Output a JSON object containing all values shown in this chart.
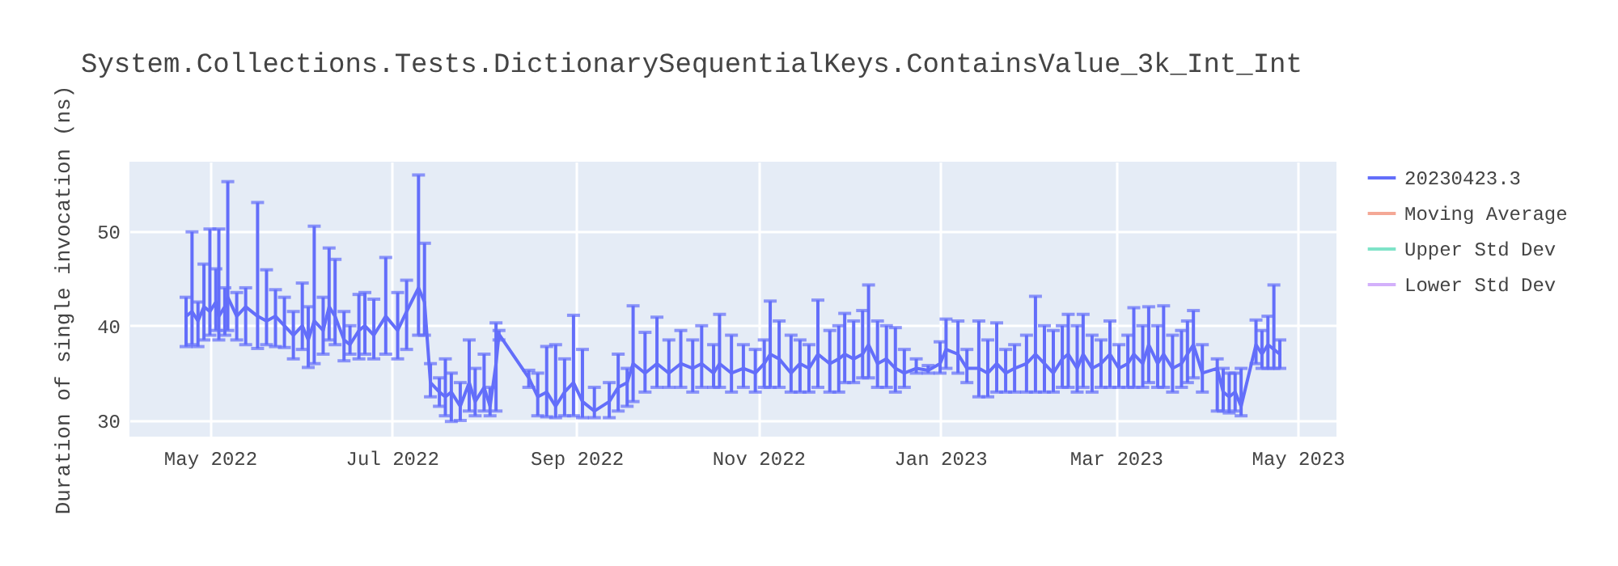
{
  "chart_data": {
    "type": "line",
    "title": "System.Collections.Tests.DictionarySequentialKeys.ContainsValue_3k_Int_Int",
    "ylabel": "Duration of single invocation (ns)",
    "xlim": [
      "2022-04-04",
      "2023-05-14"
    ],
    "xticks": [
      {
        "value": "2022-05-01",
        "label": "May 2022"
      },
      {
        "value": "2022-07-01",
        "label": "Jul 2022"
      },
      {
        "value": "2022-09-01",
        "label": "Sep 2022"
      },
      {
        "value": "2022-11-01",
        "label": "Nov 2022"
      },
      {
        "value": "2023-01-01",
        "label": "Jan 2023"
      },
      {
        "value": "2023-03-01",
        "label": "Mar 2023"
      },
      {
        "value": "2023-05-01",
        "label": "May 2023"
      }
    ],
    "ylim": [
      28.3,
      57.3
    ],
    "yticks": [
      30,
      40,
      50
    ],
    "grid": true,
    "legend": "top right",
    "marker": "none",
    "line_style": "solid",
    "series": [
      {
        "name": "20230423.3",
        "color": "#636efa",
        "x": [
          "2022-04-23",
          "2022-04-25",
          "2022-04-27",
          "2022-04-29",
          "2022-05-01",
          "2022-05-03",
          "2022-05-04",
          "2022-05-06",
          "2022-05-07",
          "2022-05-10",
          "2022-05-13",
          "2022-05-17",
          "2022-05-20",
          "2022-05-23",
          "2022-05-26",
          "2022-05-29",
          "2022-06-01",
          "2022-06-03",
          "2022-06-05",
          "2022-06-08",
          "2022-06-10",
          "2022-06-12",
          "2022-06-15",
          "2022-06-17",
          "2022-06-20",
          "2022-06-22",
          "2022-06-25",
          "2022-06-29",
          "2022-07-03",
          "2022-07-06",
          "2022-07-10",
          "2022-07-12",
          "2022-07-14",
          "2022-07-17",
          "2022-07-19",
          "2022-07-21",
          "2022-07-24",
          "2022-07-27",
          "2022-07-29",
          "2022-08-01",
          "2022-08-03",
          "2022-08-05",
          "2022-08-06",
          "2022-08-16",
          "2022-08-19",
          "2022-08-22",
          "2022-08-25",
          "2022-08-28",
          "2022-08-31",
          "2022-09-03",
          "2022-09-07",
          "2022-09-12",
          "2022-09-15",
          "2022-09-18",
          "2022-09-20",
          "2022-09-24",
          "2022-09-28",
          "2022-10-02",
          "2022-10-06",
          "2022-10-10",
          "2022-10-13",
          "2022-10-17",
          "2022-10-19",
          "2022-10-23",
          "2022-10-27",
          "2022-10-31",
          "2022-11-03",
          "2022-11-05",
          "2022-11-08",
          "2022-11-12",
          "2022-11-15",
          "2022-11-18",
          "2022-11-21",
          "2022-11-25",
          "2022-11-28",
          "2022-11-30",
          "2022-12-03",
          "2022-12-06",
          "2022-12-08",
          "2022-12-11",
          "2022-12-14",
          "2022-12-17",
          "2022-12-20",
          "2022-12-24",
          "2022-12-28",
          "2023-01-01",
          "2023-01-03",
          "2023-01-07",
          "2023-01-10",
          "2023-01-14",
          "2023-01-17",
          "2023-01-20",
          "2023-01-23",
          "2023-01-26",
          "2023-01-30",
          "2023-02-02",
          "2023-02-05",
          "2023-02-08",
          "2023-02-11",
          "2023-02-13",
          "2023-02-16",
          "2023-02-18",
          "2023-02-21",
          "2023-02-24",
          "2023-02-27",
          "2023-03-02",
          "2023-03-05",
          "2023-03-07",
          "2023-03-10",
          "2023-03-12",
          "2023-03-15",
          "2023-03-17",
          "2023-03-20",
          "2023-03-23",
          "2023-03-25",
          "2023-03-27",
          "2023-03-30",
          "2023-04-04",
          "2023-04-06",
          "2023-04-08",
          "2023-04-10",
          "2023-04-12",
          "2023-04-17",
          "2023-04-19",
          "2023-04-21",
          "2023-04-23",
          "2023-04-25"
        ],
        "values": [
          41,
          41.5,
          40.5,
          42,
          41.5,
          42.5,
          41,
          42,
          43,
          41,
          42,
          41,
          40.5,
          41,
          40,
          39,
          40,
          38.5,
          40.5,
          39.5,
          42,
          41,
          38.5,
          38,
          39.5,
          40,
          39,
          41,
          39.5,
          41.5,
          44,
          42.5,
          34,
          33,
          32.5,
          33,
          31.5,
          34,
          32,
          33.5,
          31.5,
          36,
          39.1,
          34.5,
          32.5,
          33,
          31.5,
          33,
          34,
          32,
          31,
          32,
          33.5,
          34,
          36,
          35,
          36,
          35,
          36,
          35.5,
          36,
          35,
          36,
          35,
          35.5,
          35,
          36,
          37,
          36.5,
          35,
          36,
          35.5,
          37,
          36,
          36.5,
          37,
          36.5,
          37,
          38,
          36,
          36.5,
          35.5,
          35,
          35.5,
          35.3,
          36,
          37.5,
          37,
          35.5,
          35.5,
          35,
          36,
          35,
          35.5,
          36,
          37,
          36,
          35,
          36.5,
          37,
          35.5,
          37,
          35.5,
          36,
          37,
          35.5,
          36,
          37,
          36,
          38,
          36,
          37,
          35.5,
          36,
          37,
          38,
          35,
          35.5,
          33,
          32.5,
          33,
          31.5,
          38,
          37,
          38,
          37.5,
          37
        ],
        "errors": [
          [
            37.8,
            43
          ],
          [
            38,
            49.9
          ],
          [
            37.8,
            42.5
          ],
          [
            38.5,
            46.5
          ],
          [
            39,
            50.2
          ],
          [
            39.5,
            46
          ],
          [
            38.5,
            50.2
          ],
          [
            39,
            44
          ],
          [
            39.5,
            55.2
          ],
          [
            38.5,
            43.5
          ],
          [
            38,
            44
          ],
          [
            37.6,
            53
          ],
          [
            38,
            45.9
          ],
          [
            37.8,
            43.8
          ],
          [
            37.7,
            43
          ],
          [
            36.5,
            41.5
          ],
          [
            37.5,
            44.5
          ],
          [
            35.6,
            42
          ],
          [
            36,
            50.5
          ],
          [
            37,
            43
          ],
          [
            38.5,
            48.2
          ],
          [
            38,
            47
          ],
          [
            36.3,
            41.5
          ],
          [
            37,
            40
          ],
          [
            36.5,
            43.3
          ],
          [
            37,
            43.5
          ],
          [
            36.5,
            42.8
          ],
          [
            37,
            47.2
          ],
          [
            36.5,
            43.5
          ],
          [
            37.5,
            44.8
          ],
          [
            39,
            55.9
          ],
          [
            39,
            48.7
          ],
          [
            32.5,
            36
          ],
          [
            31.5,
            34.5
          ],
          [
            30.5,
            36.5
          ],
          [
            29.9,
            35
          ],
          [
            30,
            34
          ],
          [
            31,
            38.5
          ],
          [
            30.5,
            35.5
          ],
          [
            31,
            37
          ],
          [
            30.5,
            33.5
          ],
          [
            31,
            40.3
          ],
          [
            38.5,
            39.5
          ],
          [
            33.5,
            35.3
          ],
          [
            30.5,
            35
          ],
          [
            30.4,
            37.8
          ],
          [
            30.3,
            38
          ],
          [
            30.5,
            36.5
          ],
          [
            30.5,
            41.1
          ],
          [
            30.3,
            37.5
          ],
          [
            30.3,
            33.5
          ],
          [
            30.3,
            34
          ],
          [
            31,
            37
          ],
          [
            31.5,
            35.5
          ],
          [
            32,
            42.1
          ],
          [
            33,
            39.3
          ],
          [
            33.5,
            40.9
          ],
          [
            33.5,
            38.5
          ],
          [
            33.5,
            39.5
          ],
          [
            33,
            38.5
          ],
          [
            33.5,
            40
          ],
          [
            33.5,
            38
          ],
          [
            33.5,
            41.2
          ],
          [
            33,
            39
          ],
          [
            33.5,
            38
          ],
          [
            33,
            37.5
          ],
          [
            33.5,
            38.5
          ],
          [
            33.5,
            42.6
          ],
          [
            33.5,
            40.5
          ],
          [
            33,
            39
          ],
          [
            33,
            38.5
          ],
          [
            33,
            38
          ],
          [
            33.5,
            42.7
          ],
          [
            33,
            39.5
          ],
          [
            33,
            40
          ],
          [
            34,
            41.3
          ],
          [
            34,
            40.5
          ],
          [
            34.5,
            41.6
          ],
          [
            34.5,
            44.3
          ],
          [
            33.5,
            40.5
          ],
          [
            33.5,
            40
          ],
          [
            33,
            39.8
          ],
          [
            33.5,
            37.5
          ],
          [
            35,
            36.5
          ],
          [
            35,
            35.8
          ],
          [
            35,
            38.3
          ],
          [
            35.5,
            40.7
          ],
          [
            35,
            40.5
          ],
          [
            34,
            37.5
          ],
          [
            32.5,
            40.5
          ],
          [
            32.5,
            38.5
          ],
          [
            33,
            40.3
          ],
          [
            33,
            37.5
          ],
          [
            33,
            38
          ],
          [
            33,
            39
          ],
          [
            33,
            43.1
          ],
          [
            33,
            40
          ],
          [
            33,
            39.5
          ],
          [
            33.5,
            40
          ],
          [
            33.5,
            41.2
          ],
          [
            33,
            40
          ],
          [
            33.5,
            41.2
          ],
          [
            33,
            39
          ],
          [
            33.5,
            38.5
          ],
          [
            33.5,
            40.5
          ],
          [
            33.5,
            38
          ],
          [
            33.5,
            39
          ],
          [
            33.5,
            41.9
          ],
          [
            33.5,
            40
          ],
          [
            34,
            42
          ],
          [
            33.5,
            40
          ],
          [
            33.5,
            42.1
          ],
          [
            33,
            39
          ],
          [
            33.5,
            39.5
          ],
          [
            34,
            40.5
          ],
          [
            34.5,
            41.6
          ],
          [
            33,
            38
          ],
          [
            31,
            36.5
          ],
          [
            31,
            35.5
          ],
          [
            30.8,
            35
          ],
          [
            31,
            35
          ],
          [
            30.5,
            35.5
          ],
          [
            36,
            40.6
          ],
          [
            35.5,
            39.5
          ],
          [
            35.5,
            41
          ],
          [
            35.5,
            44.3
          ],
          [
            35.5,
            38.5
          ]
        ]
      },
      {
        "name": "Moving Average",
        "color": "#f4a896"
      },
      {
        "name": "Upper Std Dev",
        "color": "#7fe3c8"
      },
      {
        "name": "Lower Std Dev",
        "color": "#d3b0fb"
      }
    ]
  }
}
